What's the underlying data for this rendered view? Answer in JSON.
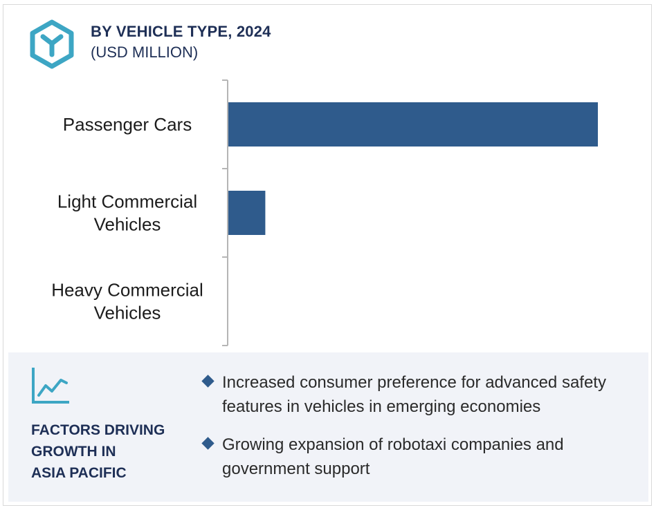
{
  "header": {
    "title": "BY VEHICLE TYPE, 2024",
    "subtitle": "(USD MILLION)",
    "logo_icon": "hexagon-y-logo-icon"
  },
  "colors": {
    "bar": "#2f5b8c",
    "heading": "#1e2f56",
    "logo": "#3da6c4",
    "panel_bg": "#f1f3f8"
  },
  "chart_data": {
    "type": "bar",
    "orientation": "horizontal",
    "title": "BY VEHICLE TYPE, 2024",
    "subtitle": "(USD MILLION)",
    "categories": [
      "Passenger Cars",
      "Light Commercial Vehicles",
      "Heavy Commercial Vehicles"
    ],
    "category_lines": [
      [
        "Passenger Cars"
      ],
      [
        "Light Commercial",
        "Vehicles"
      ],
      [
        "Heavy Commercial",
        "Vehicles"
      ]
    ],
    "values": [
      100,
      10,
      0
    ],
    "value_scale": "relative",
    "xlim": [
      0,
      100
    ],
    "grid": false,
    "legend": "none"
  },
  "factors": {
    "icon": "trend-line-icon",
    "heading_lines": [
      "FACTORS DRIVING",
      "GROWTH IN",
      "ASIA PACIFIC"
    ],
    "items": [
      "Increased consumer preference for advanced safety features in vehicles in emerging economies",
      "Growing expansion of robotaxi companies and government support"
    ]
  }
}
